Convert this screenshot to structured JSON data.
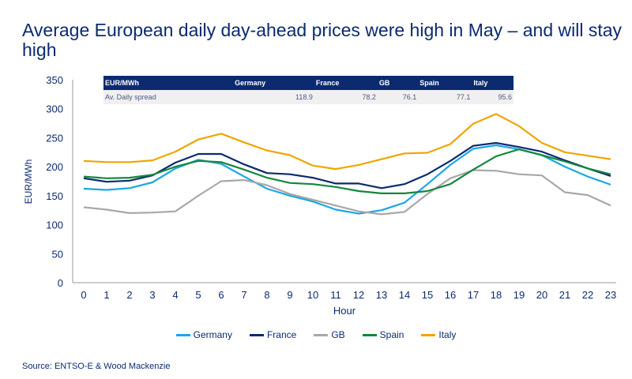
{
  "title": "Average European daily day-ahead prices were high in May – and will stay high",
  "source": "Source: ENTSO-E & Wood Mackenzie",
  "spread_table": {
    "headers": [
      "EUR/MWh",
      "Germany",
      "France",
      "GB",
      "Spain",
      "Italy"
    ],
    "row": [
      "Av. Daily spread",
      "118.9",
      "78.2",
      "76.1",
      "77.1",
      "95.6"
    ]
  },
  "chart_data": {
    "type": "line",
    "title": "",
    "xlabel": "Hour",
    "ylabel": "EUR/MWh",
    "x": [
      0,
      1,
      2,
      3,
      4,
      5,
      6,
      7,
      8,
      9,
      10,
      11,
      12,
      13,
      14,
      15,
      16,
      17,
      18,
      19,
      20,
      21,
      22,
      23
    ],
    "ylim": [
      0,
      350
    ],
    "yticks": [
      0,
      50,
      100,
      150,
      200,
      250,
      300,
      350
    ],
    "grid": false,
    "legend": "bottom",
    "series": [
      {
        "name": "Germany",
        "color": "#1aa7e6",
        "values": [
          162,
          160,
          163,
          173,
          197,
          212,
          205,
          183,
          162,
          150,
          140,
          126,
          119,
          125,
          138,
          170,
          203,
          231,
          237,
          230,
          220,
          200,
          183,
          169
        ]
      },
      {
        "name": "France",
        "color": "#0b2a6f",
        "values": [
          180,
          174,
          176,
          185,
          207,
          222,
          222,
          204,
          189,
          187,
          181,
          171,
          171,
          163,
          170,
          187,
          210,
          236,
          241,
          234,
          226,
          211,
          197,
          184
        ]
      },
      {
        "name": "GB",
        "color": "#a8a8a8",
        "values": [
          130,
          126,
          120,
          121,
          123,
          150,
          175,
          177,
          168,
          153,
          143,
          133,
          123,
          118,
          122,
          153,
          180,
          194,
          193,
          187,
          185,
          156,
          151,
          133
        ]
      },
      {
        "name": "Spain",
        "color": "#14873e",
        "values": [
          183,
          180,
          181,
          186,
          200,
          210,
          208,
          195,
          181,
          172,
          170,
          165,
          158,
          154,
          154,
          158,
          170,
          195,
          218,
          230,
          220,
          209,
          197,
          187
        ]
      },
      {
        "name": "Italy",
        "color": "#f0a500",
        "values": [
          210,
          208,
          208,
          211,
          226,
          247,
          257,
          242,
          228,
          220,
          202,
          196,
          203,
          213,
          223,
          224,
          239,
          274,
          291,
          270,
          241,
          225,
          219,
          213
        ]
      }
    ]
  }
}
